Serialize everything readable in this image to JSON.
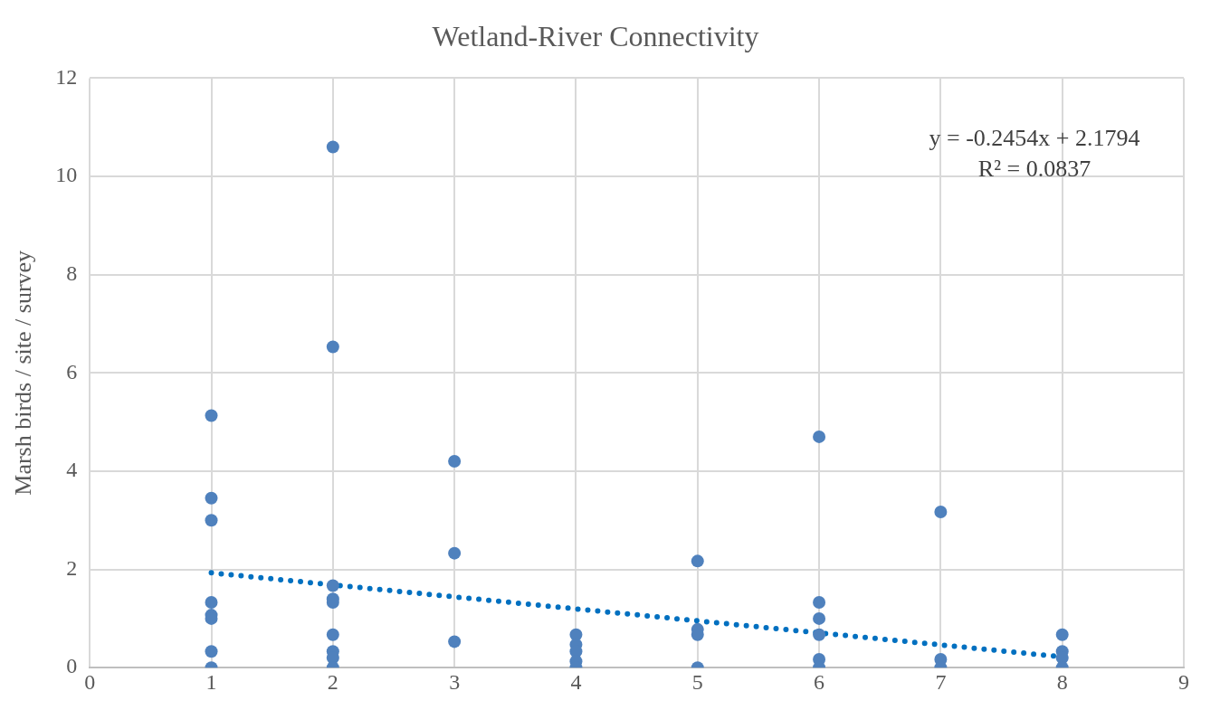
{
  "chart_data": {
    "type": "scatter",
    "title": "Wetland-River Connectivity",
    "ylabel": "Marsh birds / site / survey",
    "series": [
      {
        "type": "scatter",
        "color": "#4f81bd",
        "marker": "circle",
        "x": [
          1,
          1,
          1,
          1,
          1,
          1,
          1,
          1,
          2,
          2,
          2,
          2,
          2,
          2,
          2,
          2,
          2,
          3,
          3,
          3,
          4,
          4,
          4,
          4,
          4,
          5,
          5,
          5,
          5,
          6,
          6,
          6,
          6,
          6,
          6,
          7,
          7,
          7,
          8,
          8,
          8,
          8
        ],
        "values": [
          5.13,
          3.45,
          3.0,
          1.33,
          1.07,
          1.0,
          0.33,
          0,
          10.6,
          6.53,
          1.67,
          1.4,
          1.33,
          0.67,
          0.33,
          0.2,
          0,
          4.2,
          2.33,
          0.53,
          0.67,
          0.47,
          0.33,
          0.13,
          0,
          2.17,
          0.78,
          0.67,
          0,
          4.7,
          1.33,
          1.0,
          0.67,
          0.17,
          0,
          3.17,
          0.17,
          0,
          0.67,
          0.33,
          0.2,
          0
        ]
      },
      {
        "type": "line",
        "color": "#0070c0",
        "marker": "none",
        "line_style": "dotted",
        "x": [
          1,
          8
        ],
        "values": [
          1.93,
          0.22
        ]
      }
    ],
    "annotations": [
      "y = -0.2454x + 2.1794",
      "R² = 0.0837"
    ],
    "xlim": [
      0,
      9
    ],
    "xticks": [
      0,
      1,
      2,
      3,
      4,
      5,
      6,
      7,
      8,
      9
    ],
    "ylim": [
      0,
      12
    ],
    "yticks": [
      0,
      2,
      4,
      6,
      8,
      10,
      12
    ],
    "grid": true,
    "legend": false
  }
}
